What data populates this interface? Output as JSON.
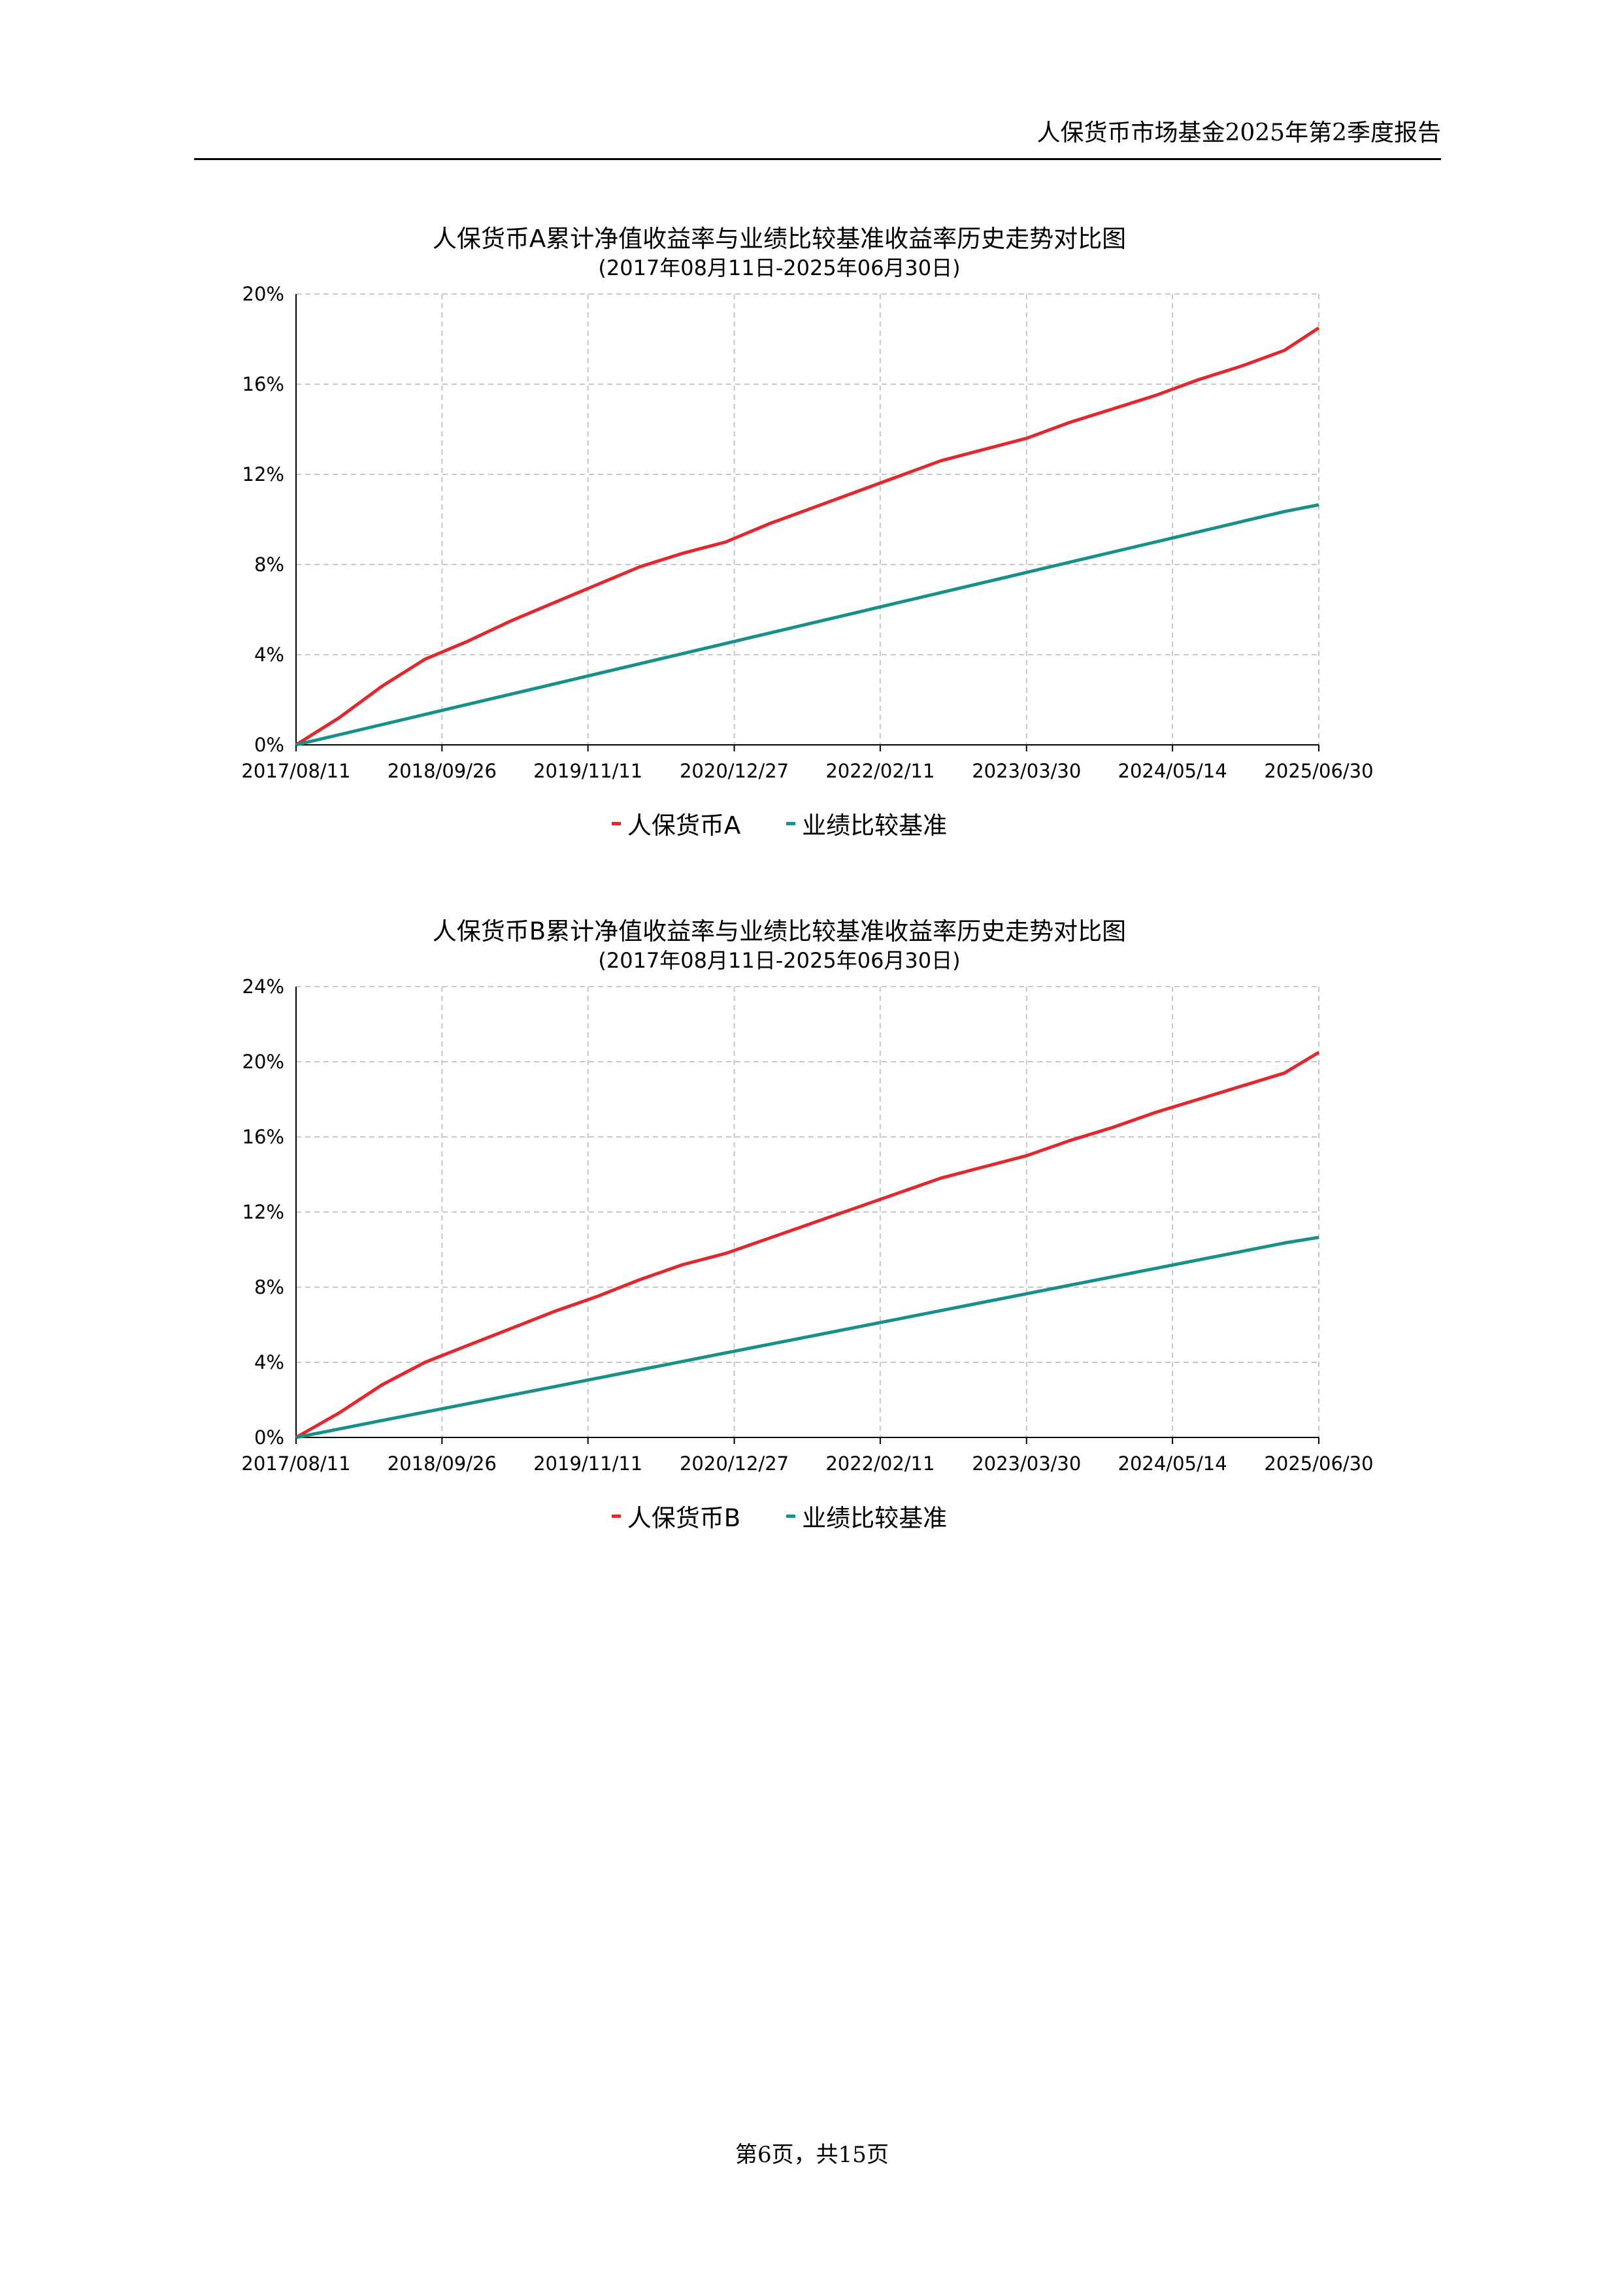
{
  "header": {
    "title": "人保货币市场基金2025年第2季度报告"
  },
  "footer": {
    "page_text": "第6页，共15页"
  },
  "colors": {
    "fund": "#e0282e",
    "benchmark": "#17908a",
    "grid": "#c8c8c8"
  },
  "chart_data": [
    {
      "type": "line",
      "title": "人保货币A累计净值收益率与业绩比较基准收益率历史走势对比图",
      "subtitle": "(2017年08月11日-2025年06月30日)",
      "x_tick_labels": [
        "2017/08/11",
        "2018/09/26",
        "2019/11/11",
        "2020/12/27",
        "2022/02/11",
        "2023/03/30",
        "2024/05/14",
        "2025/06/30"
      ],
      "y_tick_labels": [
        "0%",
        "4%",
        "8%",
        "12%",
        "16%",
        "20%"
      ],
      "ylim": [
        0,
        20
      ],
      "grid": true,
      "legend_position": "bottom-center",
      "x": [
        "2017/08/11",
        "2017/12/10",
        "2018/04/10",
        "2018/08/09",
        "2018/12/08",
        "2019/04/08",
        "2019/08/07",
        "2019/12/06",
        "2020/04/05",
        "2020/08/04",
        "2020/12/03",
        "2021/04/03",
        "2021/08/02",
        "2021/12/01",
        "2022/04/01",
        "2022/07/31",
        "2022/11/29",
        "2023/03/30",
        "2023/07/29",
        "2023/11/27",
        "2024/03/27",
        "2024/07/26",
        "2024/11/24",
        "2025/03/25",
        "2025/06/30"
      ],
      "series": [
        {
          "name": "人保货币A",
          "color": "#e0282e",
          "values": [
            0.0,
            1.2,
            2.6,
            3.8,
            4.6,
            5.5,
            6.3,
            7.1,
            7.9,
            8.5,
            9.0,
            9.8,
            10.5,
            11.2,
            11.9,
            12.6,
            13.1,
            13.6,
            14.3,
            14.9,
            15.5,
            16.2,
            16.8,
            17.5,
            18.5
          ]
        },
        {
          "name": "业绩比较基准",
          "color": "#17908a",
          "values": [
            0.0,
            0.45,
            0.9,
            1.35,
            1.8,
            2.25,
            2.7,
            3.15,
            3.6,
            4.05,
            4.5,
            4.95,
            5.4,
            5.85,
            6.3,
            6.75,
            7.2,
            7.65,
            8.1,
            8.55,
            9.0,
            9.45,
            9.9,
            10.35,
            10.65
          ]
        }
      ]
    },
    {
      "type": "line",
      "title": "人保货币B累计净值收益率与业绩比较基准收益率历史走势对比图",
      "subtitle": "(2017年08月11日-2025年06月30日)",
      "x_tick_labels": [
        "2017/08/11",
        "2018/09/26",
        "2019/11/11",
        "2020/12/27",
        "2022/02/11",
        "2023/03/30",
        "2024/05/14",
        "2025/06/30"
      ],
      "y_tick_labels": [
        "0%",
        "4%",
        "8%",
        "12%",
        "16%",
        "20%",
        "24%"
      ],
      "ylim": [
        0,
        24
      ],
      "grid": true,
      "legend_position": "bottom-center",
      "x": [
        "2017/08/11",
        "2017/12/10",
        "2018/04/10",
        "2018/08/09",
        "2018/12/08",
        "2019/04/08",
        "2019/08/07",
        "2019/12/06",
        "2020/04/05",
        "2020/08/04",
        "2020/12/03",
        "2021/04/03",
        "2021/08/02",
        "2021/12/01",
        "2022/04/01",
        "2022/07/31",
        "2022/11/29",
        "2023/03/30",
        "2023/07/29",
        "2023/11/27",
        "2024/03/27",
        "2024/07/26",
        "2024/11/24",
        "2025/03/25",
        "2025/06/30"
      ],
      "series": [
        {
          "name": "人保货币B",
          "color": "#e0282e",
          "values": [
            0.0,
            1.3,
            2.8,
            4.0,
            4.9,
            5.8,
            6.7,
            7.5,
            8.4,
            9.2,
            9.8,
            10.6,
            11.4,
            12.2,
            13.0,
            13.8,
            14.4,
            15.0,
            15.8,
            16.5,
            17.3,
            18.0,
            18.7,
            19.4,
            20.5
          ]
        },
        {
          "name": "业绩比较基准",
          "color": "#17908a",
          "values": [
            0.0,
            0.45,
            0.9,
            1.35,
            1.8,
            2.25,
            2.7,
            3.15,
            3.6,
            4.05,
            4.5,
            4.95,
            5.4,
            5.85,
            6.3,
            6.75,
            7.2,
            7.65,
            8.1,
            8.55,
            9.0,
            9.45,
            9.9,
            10.35,
            10.65
          ]
        }
      ]
    }
  ]
}
